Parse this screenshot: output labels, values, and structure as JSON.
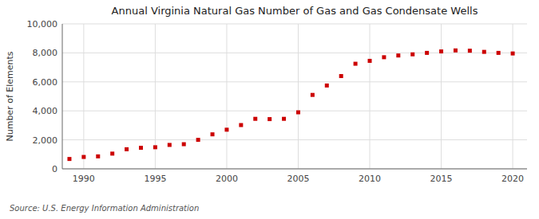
{
  "chart_data": {
    "type": "scatter",
    "title": "Annual Virginia Natural Gas Number of Gas and Gas Condensate Wells",
    "ylabel": "Number of Elements",
    "annotations": [
      "Source: U.S. Energy Information Administration"
    ],
    "x": [
      1989,
      1990,
      1991,
      1992,
      1993,
      1994,
      1995,
      1996,
      1997,
      1998,
      1999,
      2000,
      2001,
      2002,
      2003,
      2004,
      2005,
      2006,
      2007,
      2008,
      2009,
      2010,
      2011,
      2012,
      2013,
      2014,
      2015,
      2016,
      2017,
      2018,
      2019,
      2020
    ],
    "values": [
      680,
      820,
      860,
      1050,
      1350,
      1450,
      1490,
      1650,
      1700,
      2000,
      2380,
      2700,
      3020,
      3450,
      3430,
      3450,
      3900,
      5100,
      5750,
      6400,
      7250,
      7450,
      7700,
      7820,
      7900,
      8000,
      8100,
      8170,
      8150,
      8070,
      8000,
      7960
    ],
    "color": "#cc0000",
    "marker": "square",
    "xlim": [
      1988.5,
      2021
    ],
    "xticks": [
      1990,
      1995,
      2000,
      2005,
      2010,
      2015,
      2020
    ],
    "ylim": [
      0,
      10000
    ],
    "yticks": [
      0,
      {
        "value": 2000,
        "label": "2,000"
      },
      {
        "value": 4000,
        "label": "4,000"
      },
      {
        "value": 6000,
        "label": "6,000"
      },
      {
        "value": 8000,
        "label": "8,000"
      },
      {
        "value": 10000,
        "label": "10,000"
      }
    ],
    "grid": true
  }
}
